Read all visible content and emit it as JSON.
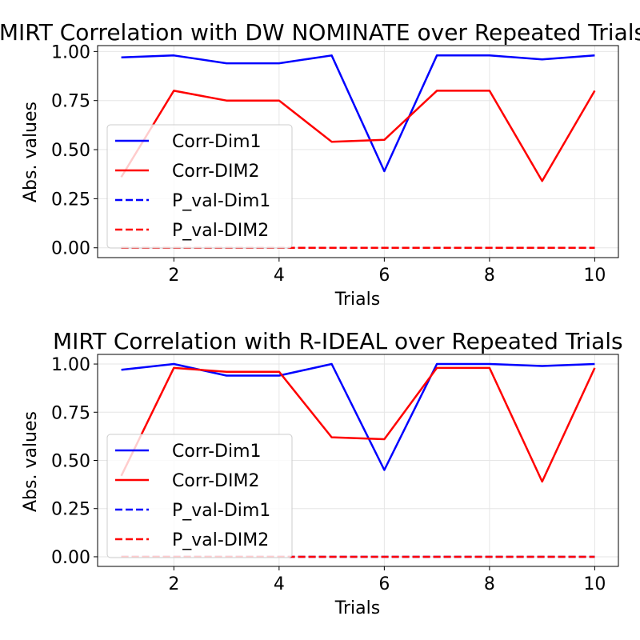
{
  "chart_data": [
    {
      "type": "line",
      "title": "MIRT Correlation with DW NOMINATE over Repeated Trials",
      "xlabel": "Trials",
      "ylabel": "Abs. values",
      "x": [
        1,
        2,
        3,
        4,
        5,
        6,
        7,
        8,
        9,
        10
      ],
      "xticks": [
        2,
        4,
        6,
        8,
        10
      ],
      "yticks": [
        0.0,
        0.25,
        0.5,
        0.75,
        1.0
      ],
      "ytick_labels": [
        "0.00",
        "0.25",
        "0.50",
        "0.75",
        "1.00"
      ],
      "xlim": [
        0.55,
        10.45
      ],
      "ylim": [
        -0.05,
        1.03
      ],
      "grid": true,
      "legend_position": "center-left",
      "series": [
        {
          "name": "Corr-Dim1",
          "color": "#0000ff",
          "style": "solid",
          "values": [
            0.97,
            0.98,
            0.94,
            0.94,
            0.98,
            0.39,
            0.98,
            0.98,
            0.96,
            0.98
          ]
        },
        {
          "name": "Corr-DIM2",
          "color": "#ff0000",
          "style": "solid",
          "values": [
            0.36,
            0.8,
            0.75,
            0.75,
            0.54,
            0.55,
            0.8,
            0.8,
            0.34,
            0.8
          ]
        },
        {
          "name": "P_val-Dim1",
          "color": "#0000ff",
          "style": "dashed",
          "values": [
            0.0,
            0.0,
            0.0,
            0.0,
            0.0,
            0.0,
            0.0,
            0.0,
            0.0,
            0.0
          ]
        },
        {
          "name": "P_val-DIM2",
          "color": "#ff0000",
          "style": "dashed",
          "values": [
            0.0,
            0.0,
            0.0,
            0.0,
            0.0,
            0.0,
            0.0,
            0.0,
            0.0,
            0.0
          ]
        }
      ]
    },
    {
      "type": "line",
      "title": "MIRT Correlation with R-IDEAL over Repeated Trials",
      "xlabel": "Trials",
      "ylabel": "Abs. values",
      "x": [
        1,
        2,
        3,
        4,
        5,
        6,
        7,
        8,
        9,
        10
      ],
      "xticks": [
        2,
        4,
        6,
        8,
        10
      ],
      "yticks": [
        0.0,
        0.25,
        0.5,
        0.75,
        1.0
      ],
      "ytick_labels": [
        "0.00",
        "0.25",
        "0.50",
        "0.75",
        "1.00"
      ],
      "xlim": [
        0.55,
        10.45
      ],
      "ylim": [
        -0.05,
        1.05
      ],
      "grid": true,
      "legend_position": "center-left",
      "series": [
        {
          "name": "Corr-Dim1",
          "color": "#0000ff",
          "style": "solid",
          "values": [
            0.97,
            1.0,
            0.94,
            0.94,
            1.0,
            0.45,
            1.0,
            1.0,
            0.99,
            1.0
          ]
        },
        {
          "name": "Corr-DIM2",
          "color": "#ff0000",
          "style": "solid",
          "values": [
            0.42,
            0.98,
            0.96,
            0.96,
            0.62,
            0.61,
            0.98,
            0.98,
            0.39,
            0.98
          ]
        },
        {
          "name": "P_val-Dim1",
          "color": "#0000ff",
          "style": "dashed",
          "values": [
            0.0,
            0.0,
            0.0,
            0.0,
            0.0,
            0.0,
            0.0,
            0.0,
            0.0,
            0.0
          ]
        },
        {
          "name": "P_val-DIM2",
          "color": "#ff0000",
          "style": "dashed",
          "values": [
            0.0,
            0.0,
            0.0,
            0.0,
            0.0,
            0.0,
            0.0,
            0.0,
            0.0,
            0.0
          ]
        }
      ]
    }
  ]
}
